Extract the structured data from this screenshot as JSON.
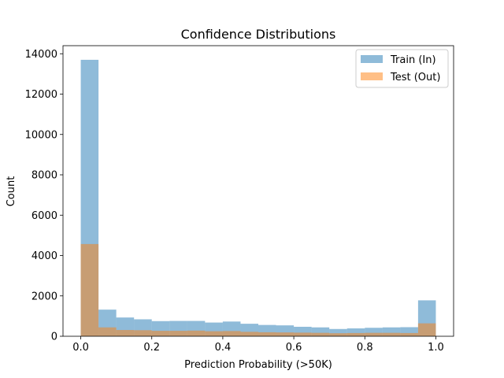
{
  "chart_data": {
    "type": "bar",
    "title": "Confidence Distributions",
    "xlabel": "Prediction Probability (>50K)",
    "ylabel": "Count",
    "xlim": [
      -0.05,
      1.05
    ],
    "ylim": [
      0,
      14400
    ],
    "xticks": [
      0.0,
      0.2,
      0.4,
      0.6,
      0.8,
      1.0
    ],
    "xtick_labels": [
      "0.0",
      "0.2",
      "0.4",
      "0.6",
      "0.8",
      "1.0"
    ],
    "yticks": [
      0,
      2000,
      4000,
      6000,
      8000,
      10000,
      12000,
      14000
    ],
    "ytick_labels": [
      "0",
      "2000",
      "4000",
      "6000",
      "8000",
      "10000",
      "12000",
      "14000"
    ],
    "bin_edges": [
      0.0,
      0.05,
      0.1,
      0.15,
      0.2,
      0.25,
      0.3,
      0.35,
      0.4,
      0.45,
      0.5,
      0.55,
      0.6,
      0.65,
      0.7,
      0.75,
      0.8,
      0.85,
      0.9,
      0.95,
      1.0
    ],
    "grid": false,
    "legend_position": "top-right",
    "series": [
      {
        "name": "Train (In)",
        "color": "#1f77b4",
        "alpha": 0.5,
        "values": [
          13700,
          1320,
          930,
          840,
          750,
          760,
          760,
          680,
          730,
          620,
          560,
          540,
          470,
          440,
          360,
          390,
          420,
          440,
          450,
          1780
        ]
      },
      {
        "name": "Test (Out)",
        "color": "#ff7f0e",
        "alpha": 0.5,
        "values": [
          4570,
          440,
          310,
          300,
          270,
          270,
          280,
          250,
          260,
          220,
          200,
          190,
          180,
          170,
          150,
          160,
          170,
          170,
          160,
          640
        ]
      }
    ]
  }
}
